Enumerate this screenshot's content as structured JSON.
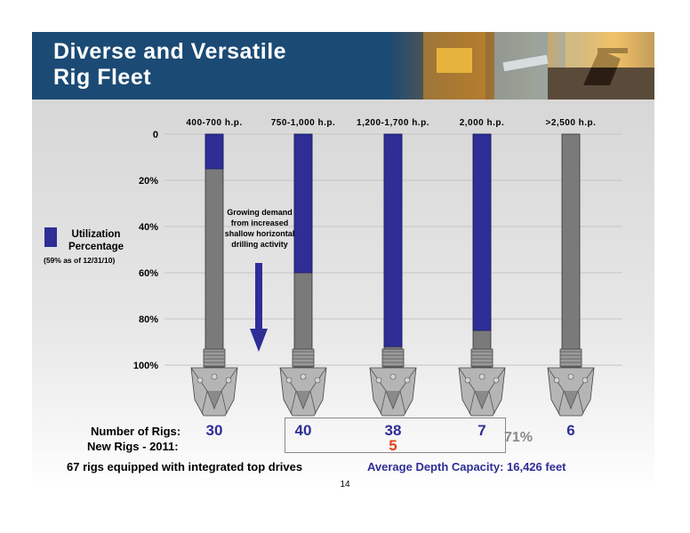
{
  "slide": {
    "title": "Diverse and Versatile\nRig Fleet",
    "page_number": "14"
  },
  "legend": {
    "title": "Utilization Percentage",
    "note": "(59% as of 12/31/10)",
    "color": "#2e2e96"
  },
  "annotation": {
    "text": "Growing demand from increased shallow horizontal drilling activity",
    "arrow_color": "#2e2e96"
  },
  "rows": {
    "number_label": "Number of Rigs:",
    "number_color": "#2e2e96",
    "new_label": "New Rigs - 2011:",
    "new_color": "#e8401c",
    "bracket_percent": "71%"
  },
  "footer": {
    "left": "67 rigs equipped with integrated top drives",
    "right": "Average Depth Capacity: 16,426 feet"
  },
  "chart_data": {
    "type": "bar",
    "categories": [
      "400-700 h.p.",
      "750-1,000 h.p.",
      "1,200-1,700 h.p.",
      "2,000 h.p.",
      ">2,500 h.p."
    ],
    "ylabel": "",
    "yticks": [
      "0",
      "20%",
      "40%",
      "60%",
      "80%",
      "100%"
    ],
    "ylim": [
      0,
      100
    ],
    "y_inverted": true,
    "series": [
      {
        "name": "Utilization Percentage",
        "color": "#2e2e96",
        "values": [
          15,
          60,
          92,
          85,
          0
        ]
      }
    ],
    "remainder_color": "#7a7a7a",
    "number_of_rigs": [
      "30",
      "40",
      "38",
      "7",
      "6"
    ],
    "new_rigs_2011": [
      "",
      "",
      "5",
      "",
      ""
    ]
  }
}
